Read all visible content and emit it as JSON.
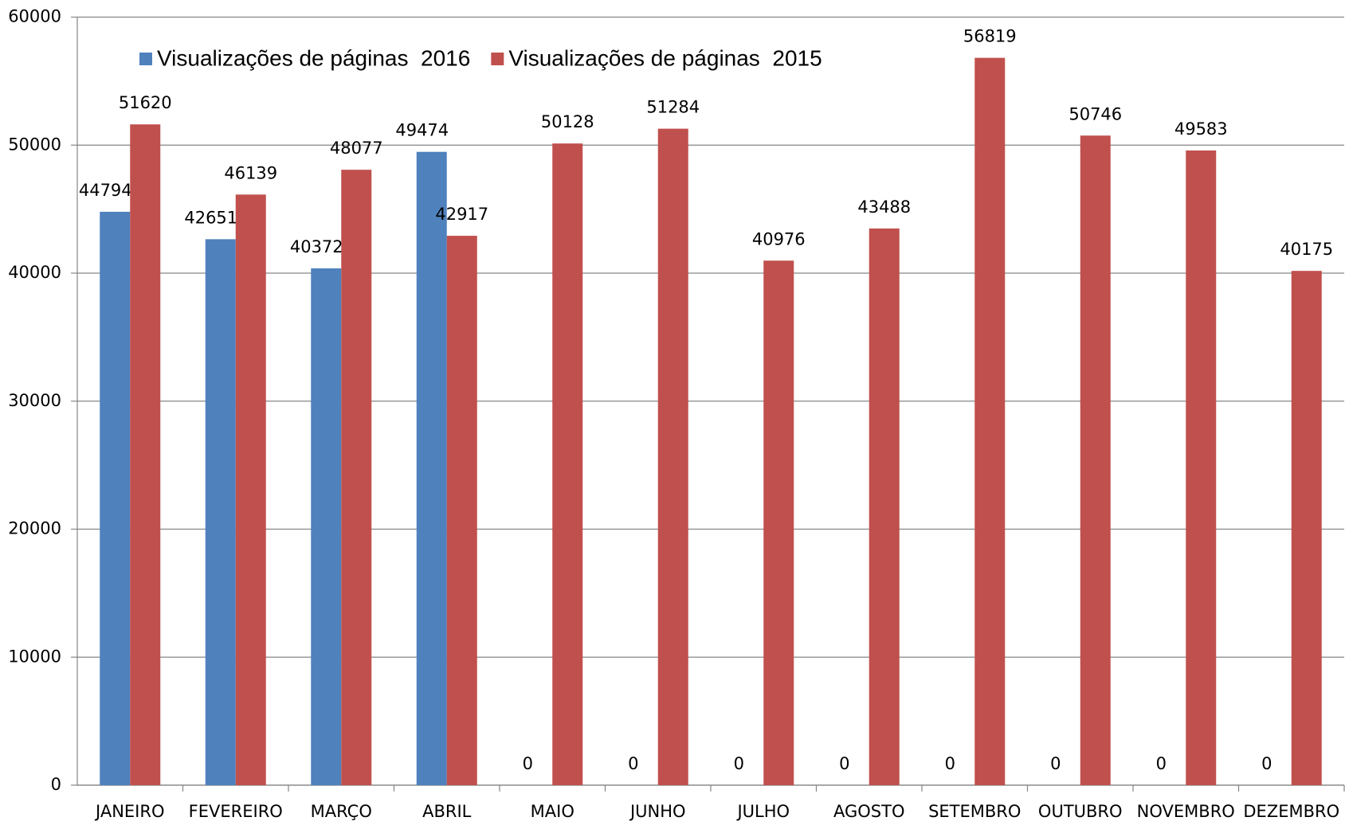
{
  "chart_data": {
    "type": "bar",
    "categories": [
      "JANEIRO",
      "FEVEREIRO",
      "MARÇO",
      "ABRIL",
      "MAIO",
      "JUNHO",
      "JULHO",
      "AGOSTO",
      "SETEMBRO",
      "OUTUBRO",
      "NOVEMBRO",
      "DEZEMBRO"
    ],
    "series": [
      {
        "name": "Visualizações de páginas  2016",
        "color": "#4f81bd",
        "values": [
          44794,
          42651,
          40372,
          49474,
          0,
          0,
          0,
          0,
          0,
          0,
          0,
          0
        ]
      },
      {
        "name": "Visualizações de páginas  2015",
        "color": "#c0504d",
        "values": [
          51620,
          46139,
          48077,
          42917,
          50128,
          51284,
          40976,
          43488,
          56819,
          50746,
          49583,
          40175
        ]
      }
    ],
    "ylim": [
      0,
      60000
    ],
    "yticks": [
      0,
      10000,
      20000,
      30000,
      40000,
      50000,
      60000
    ],
    "grid": true,
    "legend": "top-left"
  }
}
